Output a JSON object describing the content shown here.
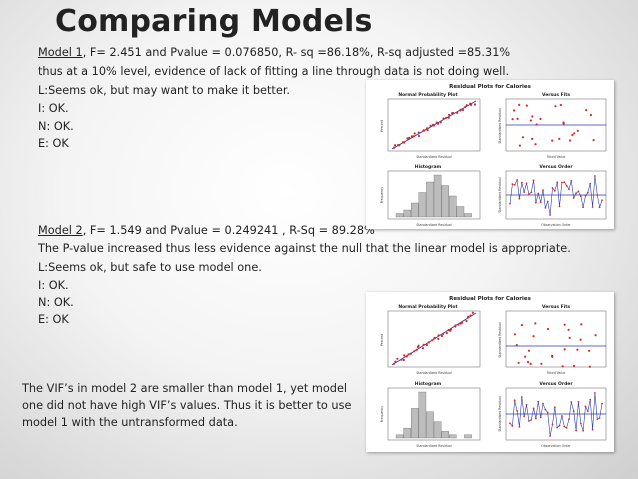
{
  "title": "Comparing Models",
  "model1": {
    "label": "Model 1",
    "stats": ", F= 2.451 and Pvalue = 0.076850, R- sq =86.18%, R-sq adjusted =85.31%",
    "note": "thus at a 10% level, evidence of lack of fitting a line through data is not doing well.",
    "l": "L:Seems ok, but may want to make it better.",
    "i": "I: OK.",
    "n": "N: OK.",
    "e": "E: OK"
  },
  "model2": {
    "label": "Model 2",
    "stats": ", F= 1.549 and Pvalue = 0.249241 , R-Sq = 89.28%",
    "note": "The P-value increased thus less evidence against the null that the linear model is appropriate.",
    "l": "L:Seems ok, but safe to use model one.",
    "i": "I: OK.",
    "n": "N: OK.",
    "e": "E: OK"
  },
  "conclusion": "The VIF’s in model 2 are smaller than model 1, yet model one did not have high VIF’s values. Thus it is better to use model 1 with the untransformed data.",
  "plots": {
    "suptitle": "Residual Plots for Calories",
    "normal_title": "Normal Probability Plot",
    "fits_title": "Versus Fits",
    "hist_title": "Histogram",
    "order_title": "Versus Order",
    "normal_xlabel": "Standardized Residual",
    "normal_ylabel": "Percent",
    "fits_xlabel": "Fitted Value",
    "fits_ylabel": "Standardized Residual",
    "hist_xlabel": "Standardized Residual",
    "hist_ylabel": "Frequency",
    "order_xlabel": "Observation Order",
    "order_ylabel": "Standardized Residual"
  },
  "colors": {
    "points": "#d42a2a",
    "fit_line": "#2a3aa8",
    "bars": "#bdbdbd",
    "text": "#222222"
  }
}
